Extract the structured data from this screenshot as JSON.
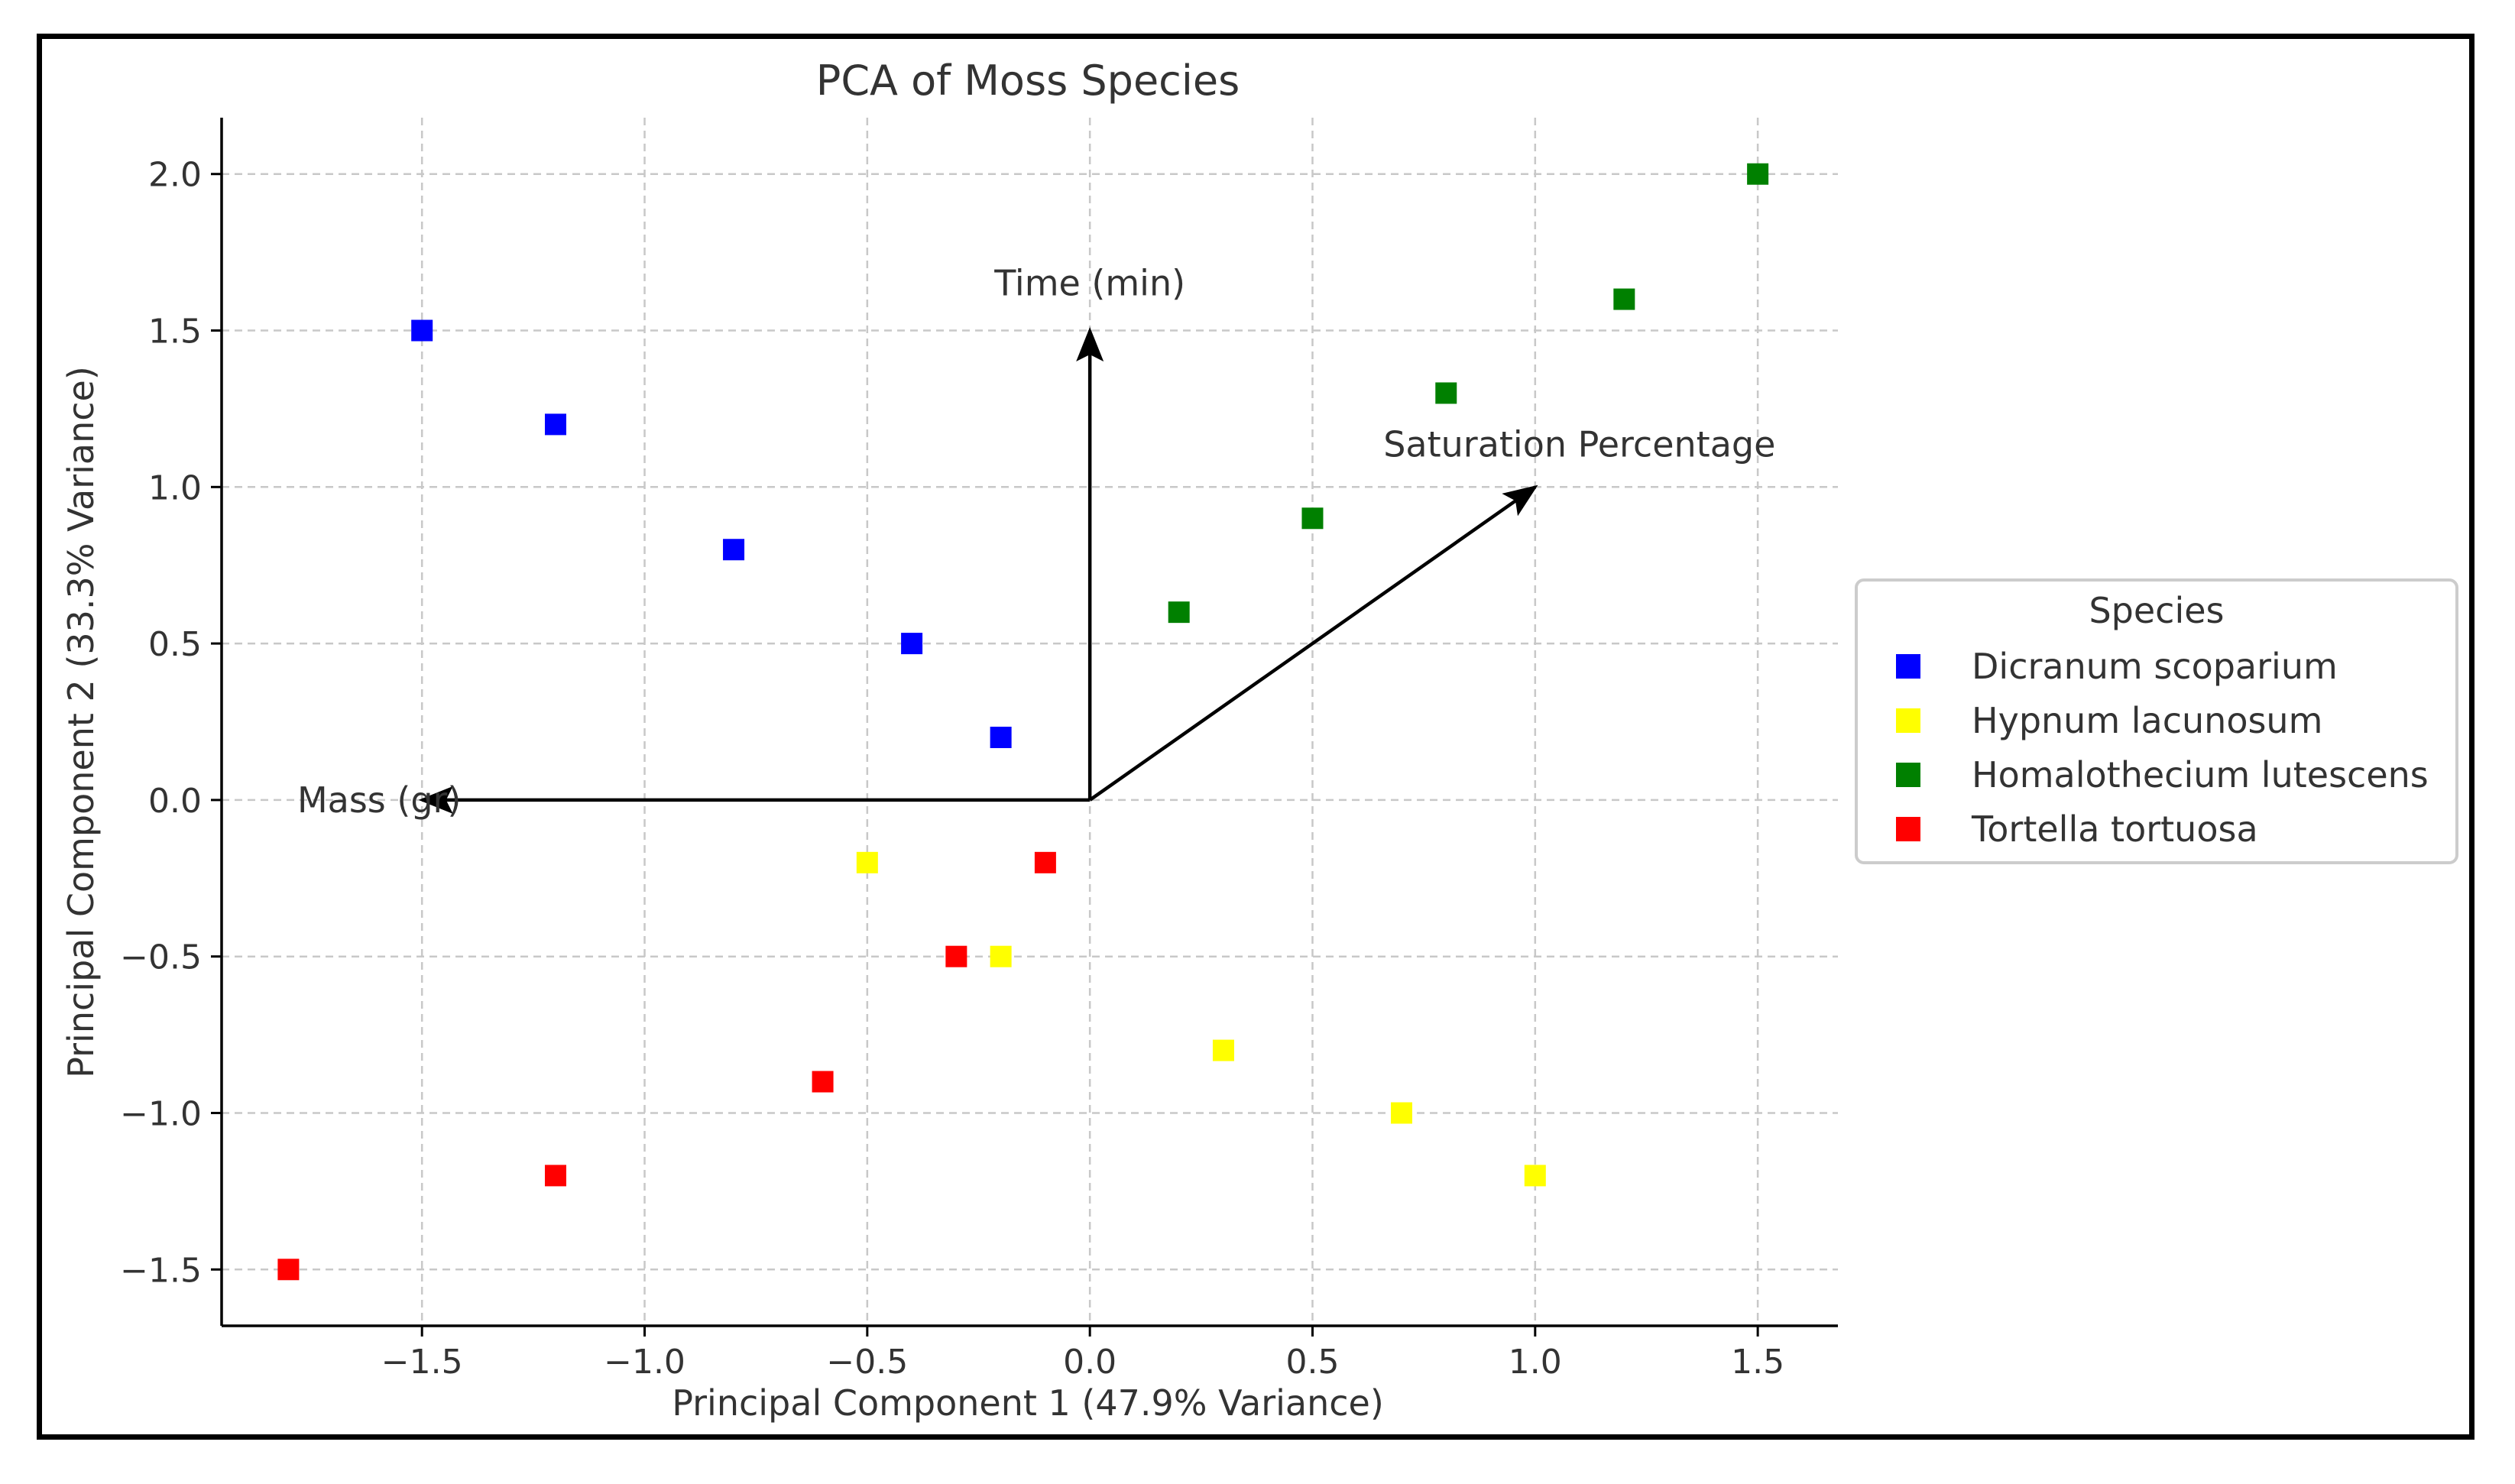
{
  "chart_data": {
    "type": "scatter",
    "title": "PCA of Moss Species",
    "xlabel": "Principal Component 1 (47.9% Variance)",
    "ylabel": "Principal Component 2 (33.3% Variance)",
    "xlim": [
      -1.95,
      1.68
    ],
    "ylim": [
      -1.68,
      2.18
    ],
    "xticks": [
      -1.5,
      -1.0,
      -0.5,
      0.0,
      0.5,
      1.0,
      1.5
    ],
    "xtick_labels": [
      "−1.5",
      "−1.0",
      "−0.5",
      "0.0",
      "0.5",
      "1.0",
      "1.5"
    ],
    "yticks": [
      -1.5,
      -1.0,
      -0.5,
      0.0,
      0.5,
      1.0,
      1.5,
      2.0
    ],
    "ytick_labels": [
      "−1.5",
      "−1.0",
      "−0.5",
      "0.0",
      "0.5",
      "1.0",
      "1.5",
      "2.0"
    ],
    "grid": true,
    "legend_title": "Species",
    "legend_position": "right",
    "series": [
      {
        "name": "Dicranum scoparium",
        "color": "#0000ff",
        "x": [
          -1.5,
          -1.2,
          -0.8,
          -0.4,
          -0.2
        ],
        "y": [
          1.5,
          1.2,
          0.8,
          0.5,
          0.2
        ]
      },
      {
        "name": "Hypnum lacunosum",
        "color": "#ffff00",
        "x": [
          -0.5,
          -0.2,
          0.3,
          0.7,
          1.0
        ],
        "y": [
          -0.2,
          -0.5,
          -0.8,
          -1.0,
          -1.2
        ]
      },
      {
        "name": "Homalothecium lutescens",
        "color": "#008000",
        "x": [
          0.2,
          0.5,
          0.8,
          1.2,
          1.5
        ],
        "y": [
          0.6,
          0.9,
          1.3,
          1.6,
          2.0
        ]
      },
      {
        "name": "Tortella tortuosa",
        "color": "#ff0000",
        "x": [
          -1.8,
          -1.2,
          -0.6,
          -0.3,
          -0.1
        ],
        "y": [
          -1.5,
          -1.2,
          -0.9,
          -0.5,
          -0.2
        ]
      }
    ],
    "loadings": [
      {
        "label": "Time (min)",
        "x": 0.0,
        "y": 1.5
      },
      {
        "label": "Saturation Percentage",
        "x": 1.0,
        "y": 1.0
      },
      {
        "label": "Mass (gr)",
        "x": -1.5,
        "y": 0.0
      }
    ]
  }
}
